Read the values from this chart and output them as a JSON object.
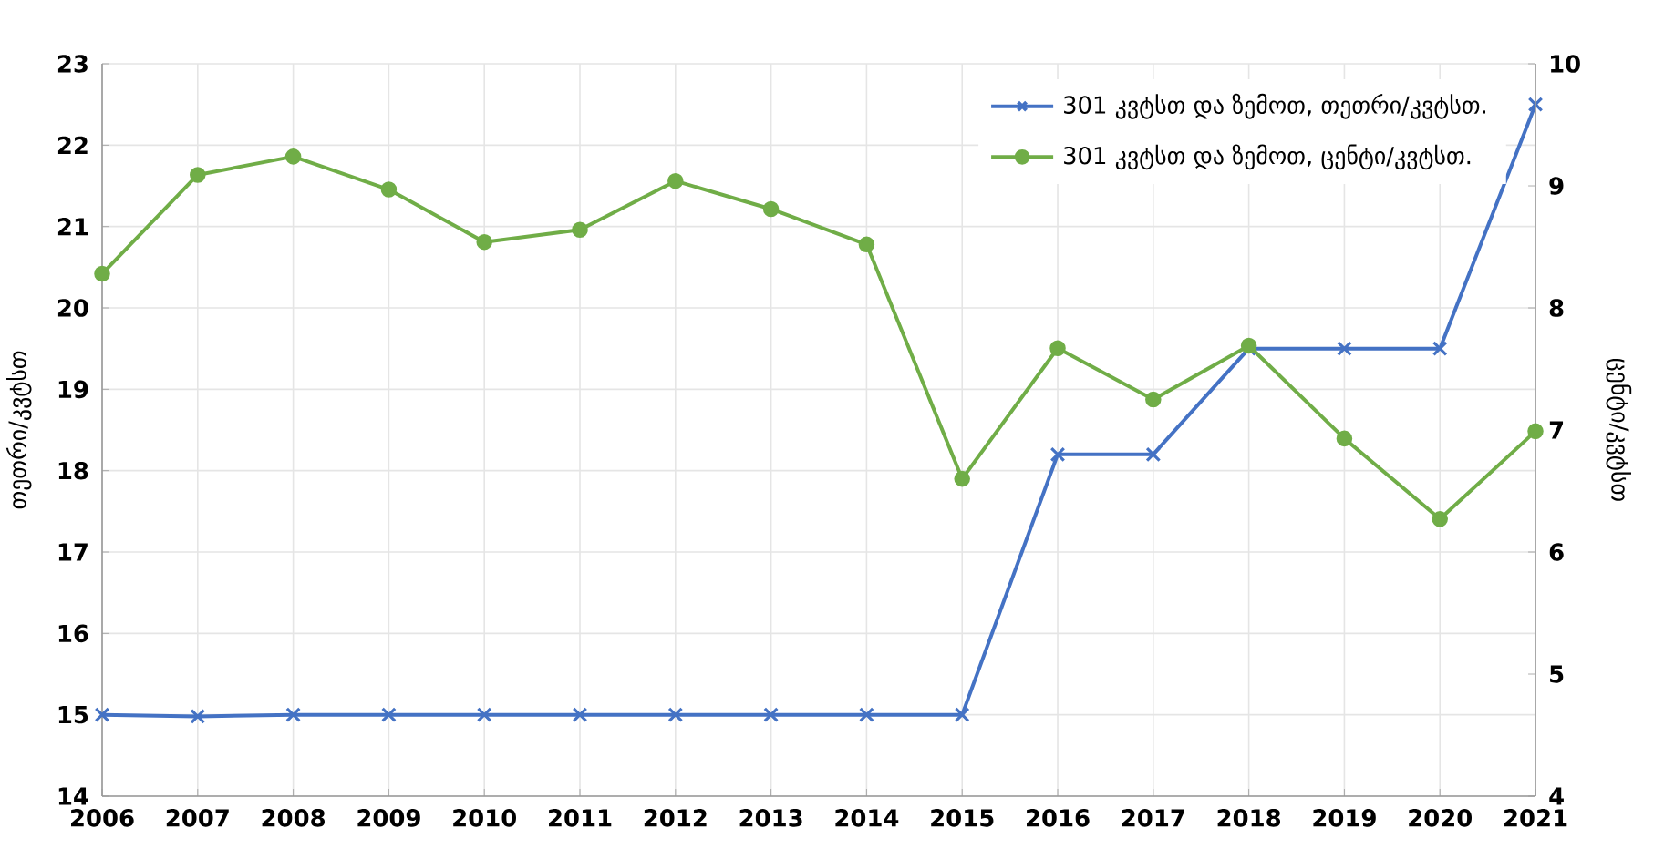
{
  "chart_data": {
    "type": "line",
    "categories": [
      "2006",
      "2007",
      "2008",
      "2009",
      "2010",
      "2011",
      "2012",
      "2013",
      "2014",
      "2015",
      "2016",
      "2017",
      "2018",
      "2019",
      "2020",
      "2021"
    ],
    "series": [
      {
        "name": "301 კვტსთ და ზემოთ, თეთრი/კვტსთ.",
        "color": "#4472c4",
        "marker": "cross",
        "values": [
          15,
          14.98,
          15,
          15,
          15,
          15,
          15,
          15,
          15,
          15,
          18.2,
          18.2,
          19.5,
          19.5,
          19.5,
          22.5
        ]
      },
      {
        "name": "301 კვტსთ და ზემოთ, ცენტი/კვტსთ.",
        "color": "#70ad47",
        "marker": "circle",
        "axis": "y2",
        "values": [
          8.28,
          9.09,
          9.24,
          8.97,
          8.54,
          8.64,
          9.04,
          8.81,
          8.52,
          6.6,
          7.67,
          7.25,
          7.69,
          6.93,
          6.27,
          6.99
        ]
      }
    ],
    "ylabel": "თეთრი/კვტსთ",
    "y2label": "ცენტი/კვტსთ",
    "ylim": [
      14,
      23
    ],
    "yticks": [
      14,
      15,
      16,
      17,
      18,
      19,
      20,
      21,
      22,
      23
    ],
    "y2lim": [
      4,
      10
    ],
    "y2ticks": [
      4,
      5,
      6,
      7,
      8,
      9,
      10
    ],
    "grid": true,
    "legend": "top right",
    "line_style": "solid"
  }
}
